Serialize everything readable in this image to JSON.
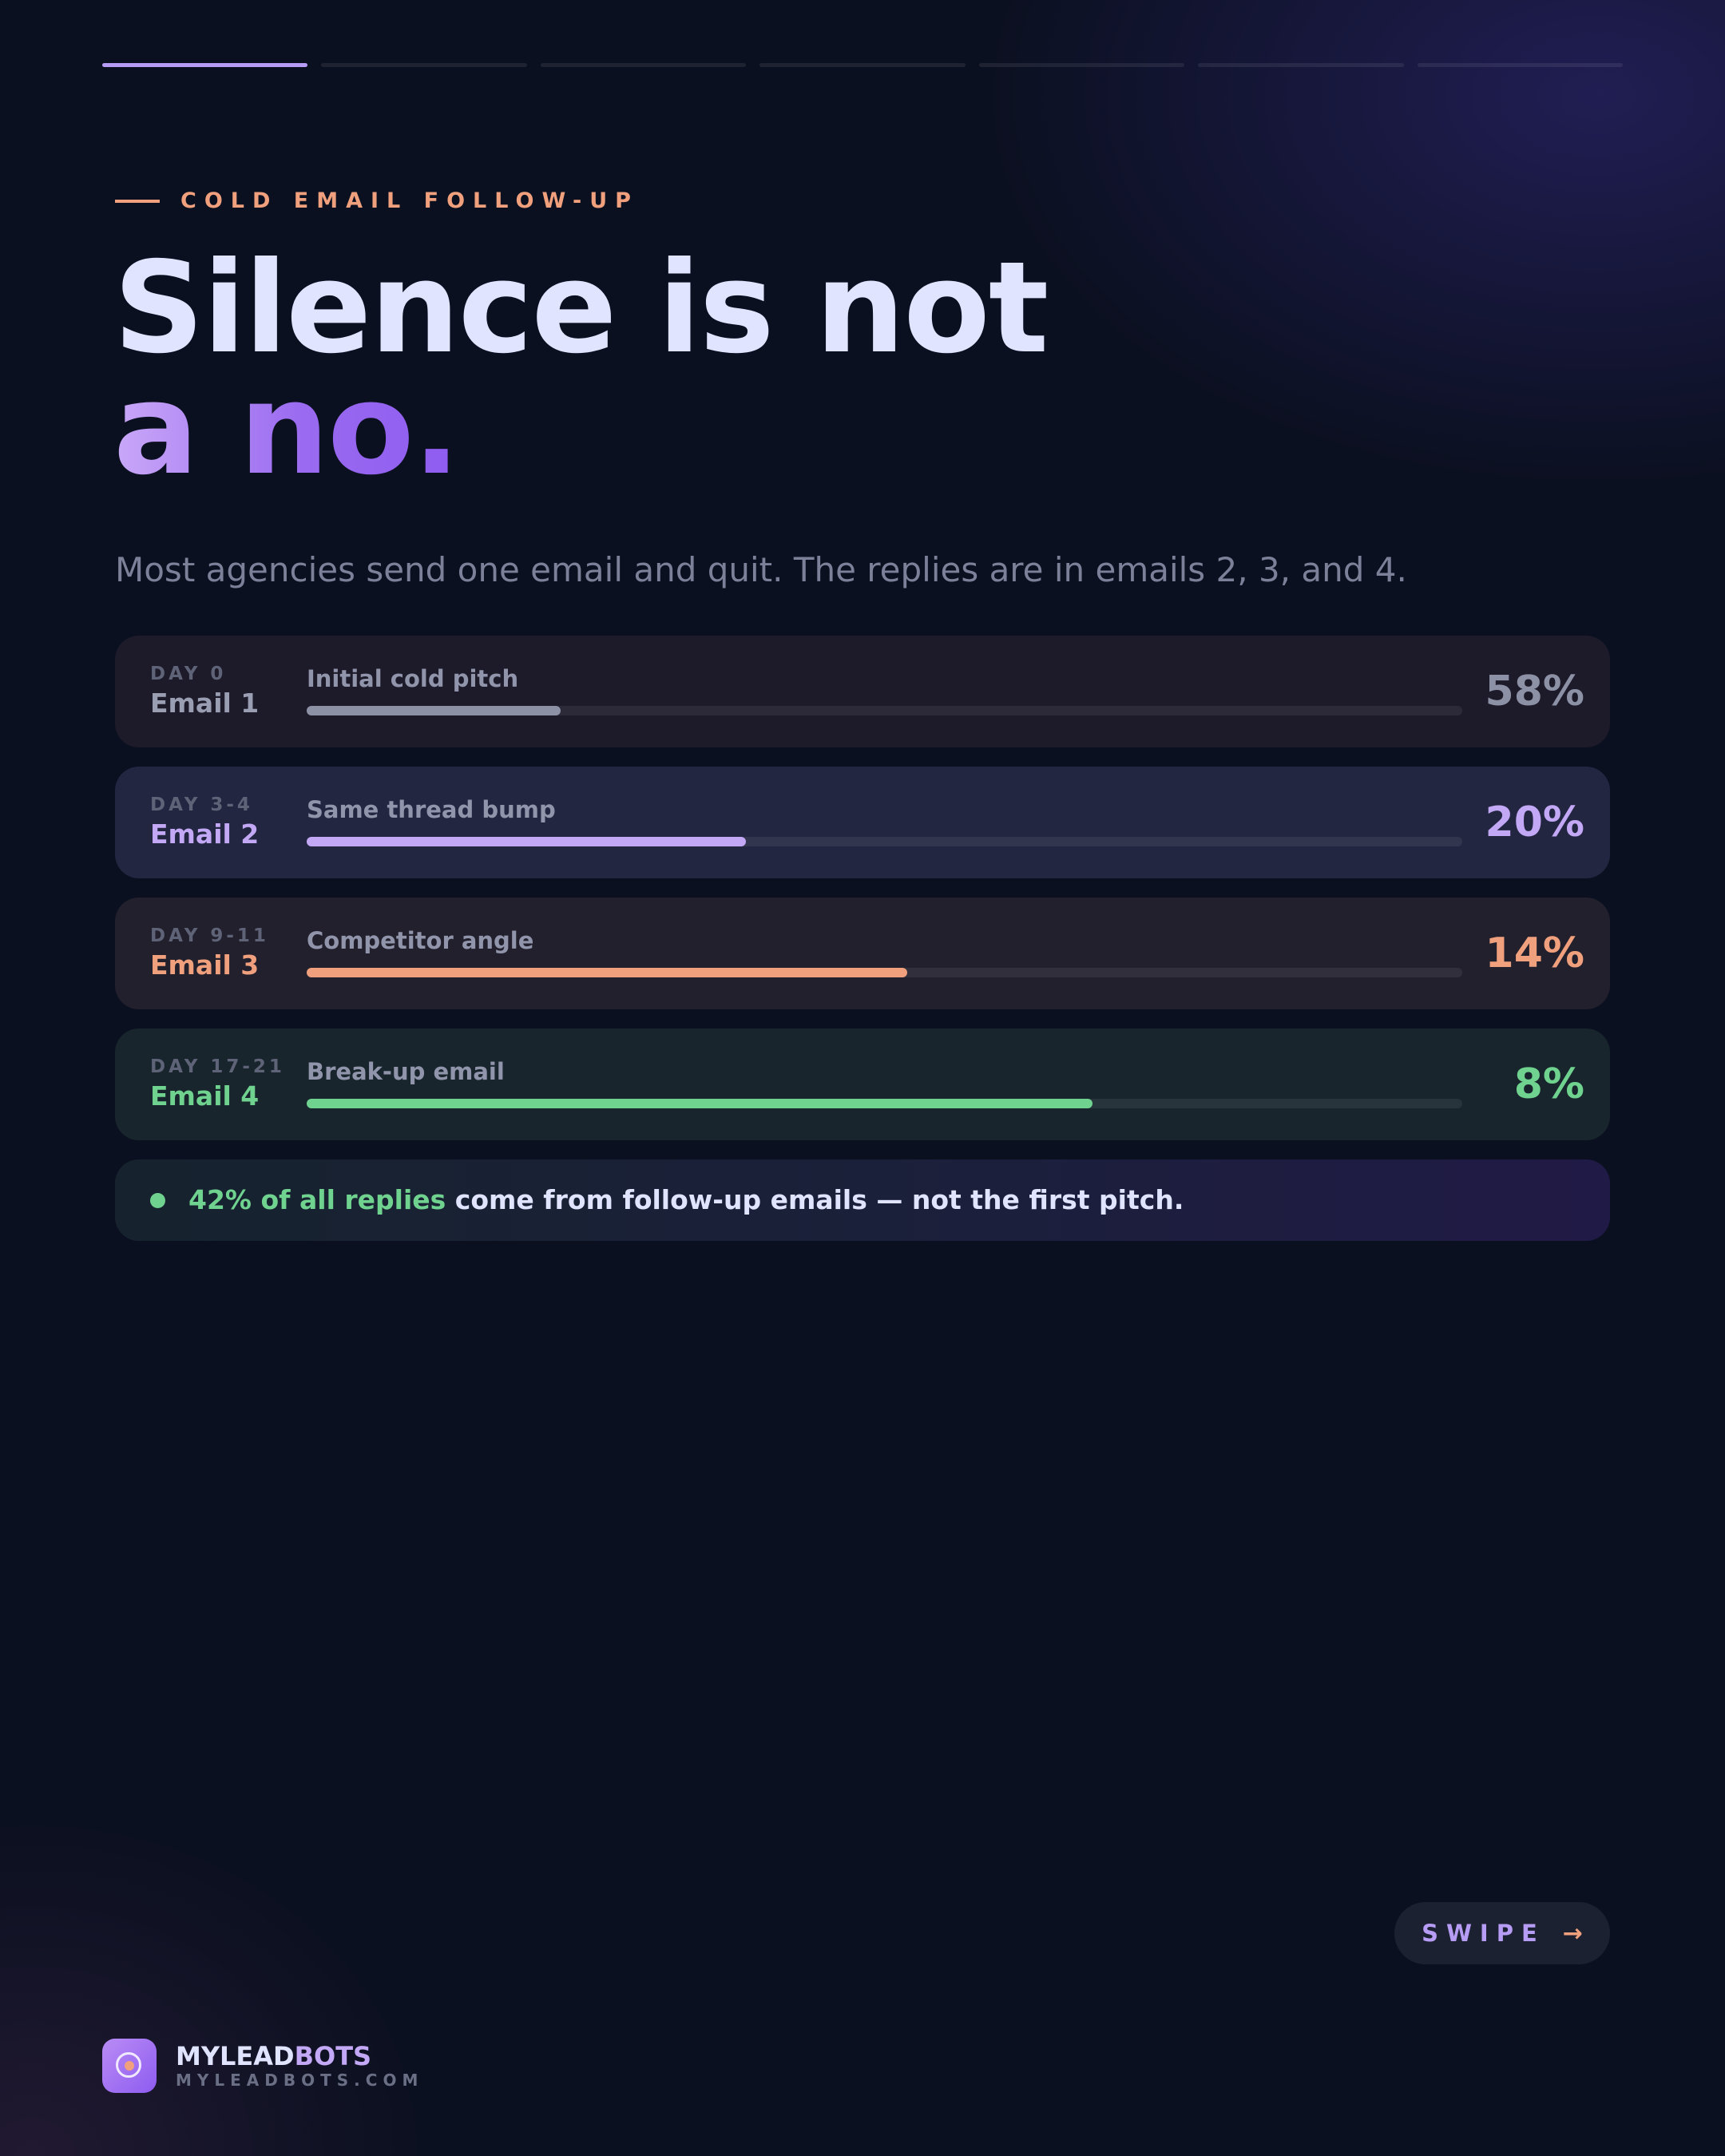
{
  "progress": {
    "total_segments": 7,
    "active_segment": 1
  },
  "eyebrow": "COLD EMAIL FOLLOW-UP",
  "headline": {
    "line1": "Silence is not",
    "line2": "a no."
  },
  "subtitle": "Most agencies send one email and quit. The replies are in emails 2, 3, and 4.",
  "emails": [
    {
      "day": "DAY 0",
      "name": "Email 1",
      "label": "Initial cold pitch",
      "percent_label": "58%",
      "bar_fill_percent": 22,
      "color": "#8d91a6"
    },
    {
      "day": "DAY 3-4",
      "name": "Email 2",
      "label": "Same thread bump",
      "percent_label": "20%",
      "bar_fill_percent": 38,
      "color": "#c3a8f6"
    },
    {
      "day": "DAY 9-11",
      "name": "Email 3",
      "label": "Competitor angle",
      "percent_label": "14%",
      "bar_fill_percent": 52,
      "color": "#f0a07c"
    },
    {
      "day": "DAY 17-21",
      "name": "Email 4",
      "label": "Break-up email",
      "percent_label": "8%",
      "bar_fill_percent": 68,
      "color": "#6fd28f"
    }
  ],
  "insight": {
    "highlight": "42% of all replies",
    "rest": " come from follow-up emails — not the first pitch."
  },
  "swipe": {
    "label": "SWIPE",
    "arrow": "→"
  },
  "brand": {
    "name_part1": "MYLEAD",
    "name_part2": "BOTS",
    "url": "MYLEADBOTS.COM",
    "logo_icon": "target-icon"
  },
  "colors": {
    "background": "#0b1020",
    "accent_purple": "#b79cf5",
    "accent_orange": "#f0a07c",
    "accent_green": "#6fd28f"
  }
}
